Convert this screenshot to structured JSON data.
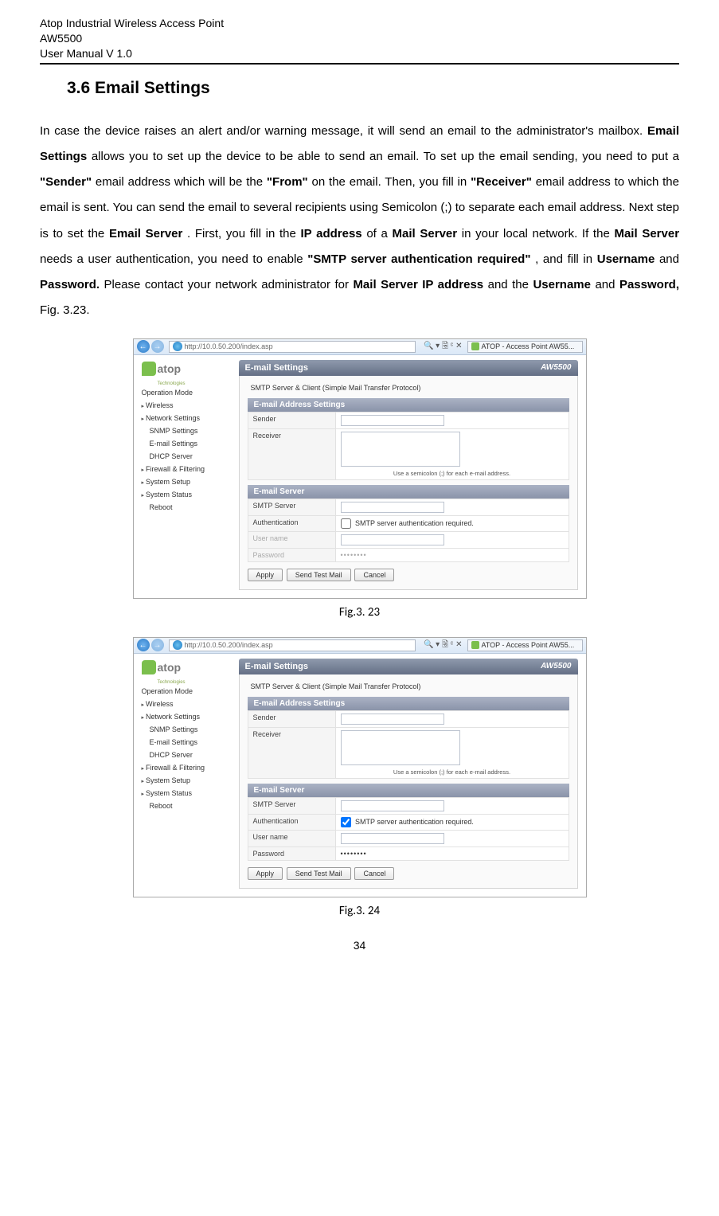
{
  "header": {
    "line1": "Atop Industrial Wireless Access Point",
    "line2": "AW5500",
    "line3": "User Manual V 1.0"
  },
  "section": {
    "title": "3.6  Email Settings"
  },
  "paragraph": {
    "seg1": "In case the device raises an alert and/or warning message, it will send an email to the administrator's mailbox. ",
    "b1": "Email Settings",
    "seg2": " allows you to set up the device to be able to send an email. To set up the email sending, you need to put a ",
    "b2": "\"Sender\"",
    "seg3": " email address which will be the ",
    "b3": "\"From\"",
    "seg4": " on the email. Then, you fill in ",
    "b4": "\"Receiver\"",
    "seg5": " email address to which the email is sent. You can send the email to several recipients using Semicolon (;) to separate each email address. Next step is to set the ",
    "b5": "Email Server",
    "seg6": ". First, you fill in the ",
    "b6": "IP address",
    "seg7": " of a ",
    "b7": "Mail Server",
    "seg8": " in your local network. If the ",
    "b8": "Mail Server",
    "seg9": " needs a user authentication, you need to enable ",
    "b9": "\"SMTP server authentication required\"",
    "seg10": ", and fill in ",
    "b10": "Username",
    "seg11": " and ",
    "b11": "Password.",
    "seg12": " Please contact your network administrator for ",
    "b12": "Mail Server IP address",
    "seg13": " and the ",
    "b13": "Username",
    "seg14": " and ",
    "b14": "Password,",
    "seg15": " Fig. 3.23."
  },
  "fig": {
    "url": "http://10.0.50.200/index.asp",
    "tab": "ATOP - Access Point AW55...",
    "logo": "atop",
    "logo_sub": "Technologies",
    "nav": [
      "Operation Mode",
      "Wireless",
      "Network Settings",
      "SNMP Settings",
      "E-mail Settings",
      "DHCP Server",
      "Firewall & Filtering",
      "System Setup",
      "System Status",
      "Reboot"
    ],
    "nav_exp": [
      false,
      true,
      true,
      false,
      false,
      false,
      true,
      true,
      true,
      false
    ],
    "nav_sub": [
      false,
      false,
      false,
      true,
      true,
      true,
      false,
      false,
      false,
      true
    ],
    "panel_title": "E-mail Settings",
    "model": "AW5500",
    "proto": "SMTP Server & Client (Simple Mail Transfer Protocol)",
    "hdr1": "E-mail Address Settings",
    "lbl_sender": "Sender",
    "lbl_receiver": "Receiver",
    "hint": "Use a semicolon (;) for each e-mail address.",
    "hdr2": "E-mail Server",
    "lbl_smtp": "SMTP Server",
    "lbl_auth": "Authentication",
    "auth_text": "SMTP server authentication required.",
    "lbl_user": "User name",
    "lbl_pass": "Password",
    "pass_dots": "••••••••",
    "btn_apply": "Apply",
    "btn_test": "Send Test Mail",
    "btn_cancel": "Cancel"
  },
  "caption1": "Fig.3. 23",
  "caption2": "Fig.3. 24",
  "page_num": "34",
  "colors": {
    "panel_grad_top": "#8f9aad",
    "panel_grad_bot": "#646f85",
    "logo_green": "#7bbf4d"
  }
}
